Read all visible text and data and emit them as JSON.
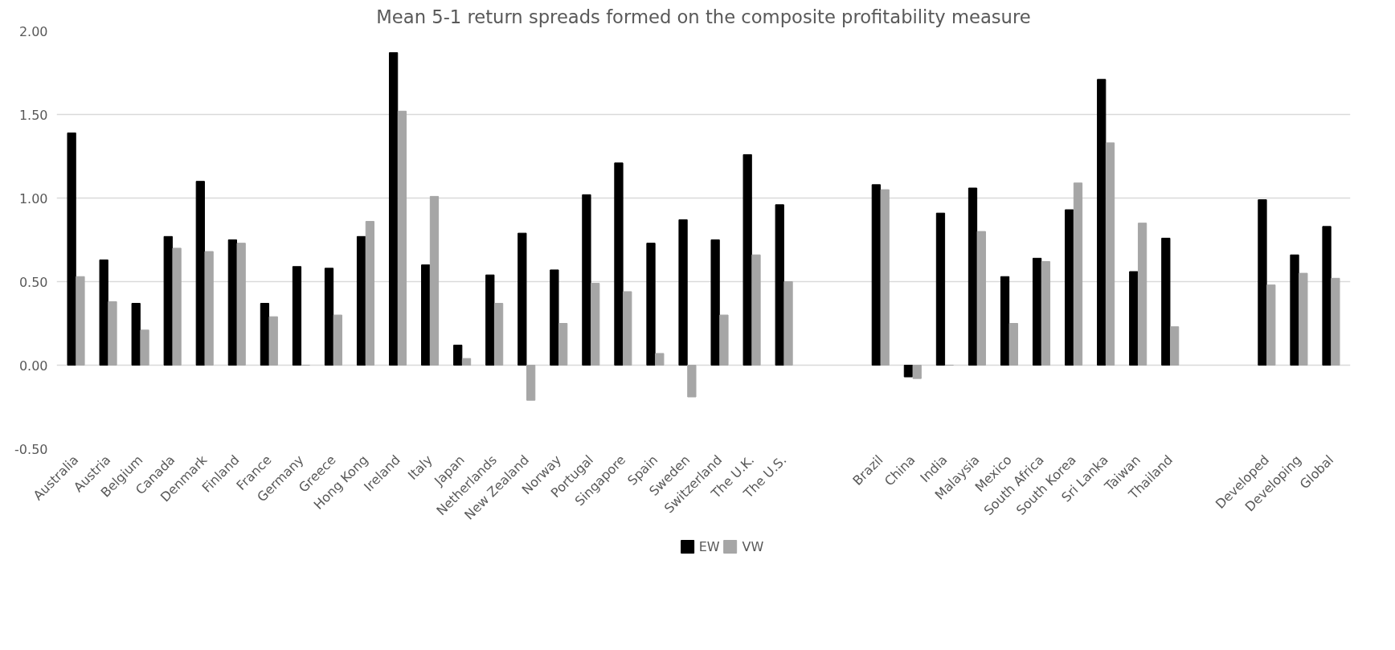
{
  "chart_data": {
    "type": "bar",
    "title": "Mean 5-1 return spreads formed on the composite profitability measure",
    "categories": [
      "Australia",
      "Austria",
      "Belgium",
      "Canada",
      "Denmark",
      "Finland",
      "France",
      "Germany",
      "Greece",
      "Hong Kong",
      "Ireland",
      "Italy",
      "Japan",
      "Netherlands",
      "New Zealand",
      "Norway",
      "Portugal",
      "Singapore",
      "Spain",
      "Sweden",
      "Switzerland",
      "The U.K.",
      "The U.S.",
      null,
      null,
      "Brazil",
      "China",
      "India",
      "Malaysia",
      "Mexico",
      "South Africa",
      "South Korea",
      "Sri Lanka",
      "Taiwan",
      "Thailand",
      null,
      null,
      "Developed",
      "Developing",
      "Global"
    ],
    "series": [
      {
        "name": "EW",
        "color": "#000000",
        "values": [
          1.39,
          0.63,
          0.37,
          0.77,
          1.1,
          0.75,
          0.37,
          0.59,
          0.58,
          0.77,
          1.87,
          0.6,
          0.12,
          0.54,
          0.79,
          0.57,
          1.02,
          1.21,
          0.73,
          0.87,
          0.75,
          1.26,
          0.96,
          null,
          null,
          1.08,
          -0.07,
          0.91,
          1.06,
          0.53,
          0.64,
          0.93,
          1.71,
          0.56,
          0.76,
          null,
          null,
          0.99,
          0.66,
          0.83
        ]
      },
      {
        "name": "VW",
        "color": "#a6a6a6",
        "values": [
          0.53,
          0.38,
          0.21,
          0.7,
          0.68,
          0.73,
          0.29,
          0.0,
          0.3,
          0.86,
          1.52,
          1.01,
          0.04,
          0.37,
          -0.21,
          0.25,
          0.49,
          0.44,
          0.07,
          -0.19,
          0.3,
          0.66,
          0.5,
          null,
          null,
          1.05,
          -0.08,
          0.0,
          0.8,
          0.25,
          0.62,
          1.09,
          1.33,
          0.85,
          0.23,
          null,
          null,
          0.48,
          0.55,
          0.52
        ]
      }
    ],
    "ylim": [
      -0.5,
      2.0
    ],
    "yticks": [
      {
        "value": -0.5,
        "label": "-0.50"
      },
      {
        "value": 0,
        "label": "0.00"
      },
      {
        "value": 0.5,
        "label": "0.50"
      },
      {
        "value": 1.0,
        "label": "1.00"
      },
      {
        "value": 1.5,
        "label": "1.50"
      },
      {
        "value": 2.0,
        "label": "2.00"
      }
    ],
    "grid": "y",
    "legend": "bottom"
  }
}
